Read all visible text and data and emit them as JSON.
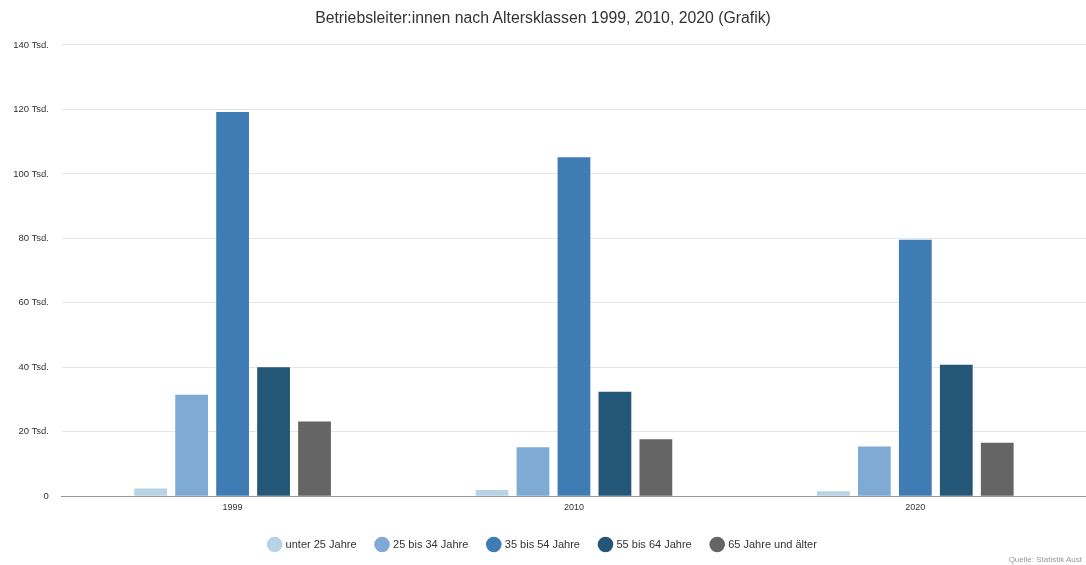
{
  "chart_data": {
    "type": "bar",
    "title": "Betriebsleiter:innen nach Altersklassen 1999, 2010, 2020 (Grafik)",
    "categories": [
      "1999",
      "2010",
      "2020"
    ],
    "series": [
      {
        "name": "unter 25 Jahre",
        "color": "#b9d3e6",
        "values": [
          2.4,
          1.9,
          1.5
        ]
      },
      {
        "name": "25 bis 34 Jahre",
        "color": "#7eaad3",
        "values": [
          31.5,
          15.2,
          15.4
        ]
      },
      {
        "name": "35 bis 54 Jahre",
        "color": "#3f7cb4",
        "values": [
          119.2,
          105.2,
          79.6
        ]
      },
      {
        "name": "55 bis 64 Jahre",
        "color": "#235677",
        "values": [
          40,
          32.4,
          40.8
        ]
      },
      {
        "name": "65 Jahre und älter",
        "color": "#656565",
        "values": [
          23.2,
          17.7,
          16.6
        ]
      }
    ],
    "ylim": [
      0,
      140
    ],
    "yticks": [
      0,
      {
        "value": 20,
        "label": "20 Tsd."
      },
      {
        "value": 40,
        "label": "40 Tsd."
      },
      {
        "value": 60,
        "label": "60 Tsd."
      },
      {
        "value": 80,
        "label": "80 Tsd."
      },
      {
        "value": 100,
        "label": "100 Tsd."
      },
      {
        "value": 120,
        "label": "120 Tsd."
      },
      {
        "value": 140,
        "label": "140 Tsd."
      }
    ],
    "grid": "y",
    "legend": "bottom",
    "annotations": [
      "Quelle: Statistik Aust"
    ]
  }
}
